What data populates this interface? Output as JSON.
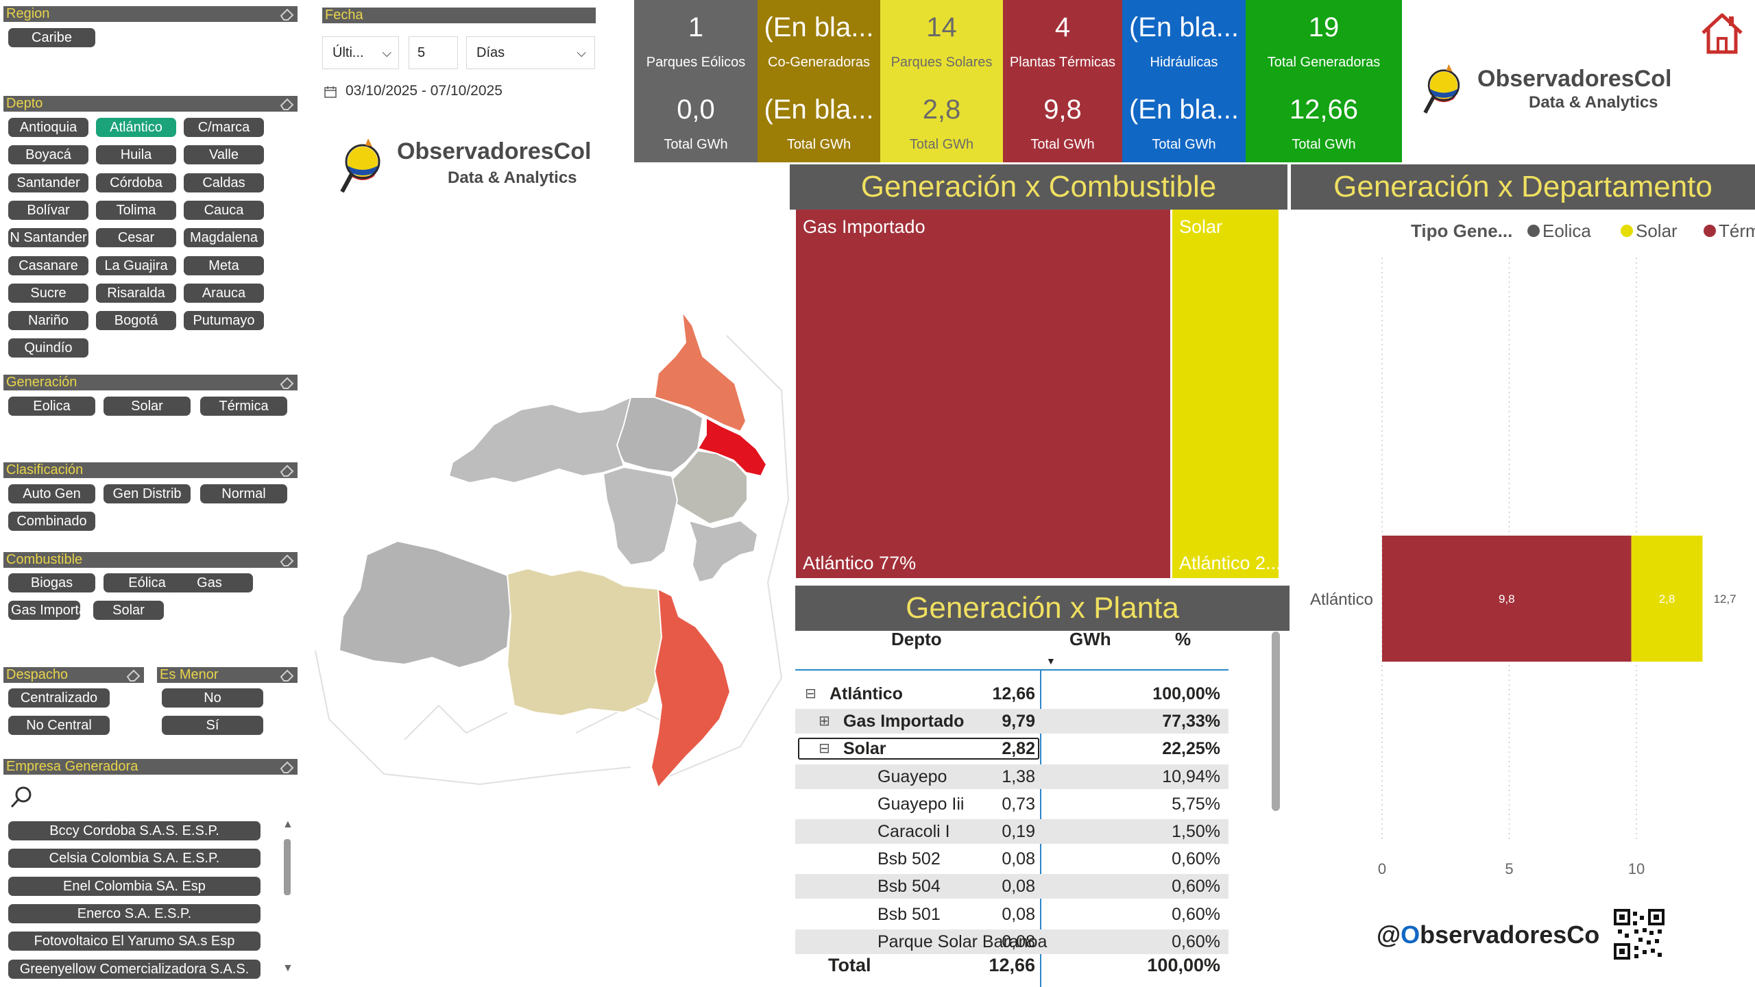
{
  "slicers": {
    "region": {
      "title": "Region",
      "items": [
        "Caribe"
      ]
    },
    "fecha": {
      "title": "Fecha",
      "mode": "Últi...",
      "count": "5",
      "unit": "Días",
      "range": "03/10/2025 - 07/10/2025"
    },
    "depto": {
      "title": "Depto",
      "items": [
        "Antioquia",
        "Atlántico",
        "C/marca",
        "Boyacá",
        "Huila",
        "Valle",
        "Santander",
        "Córdoba",
        "Caldas",
        "Bolívar",
        "Tolima",
        "Cauca",
        "N Santander",
        "Cesar",
        "Magdalena",
        "Casanare",
        "La Guajira",
        "Meta",
        "Sucre",
        "Risaralda",
        "Arauca",
        "Nariño",
        "Bogotá",
        "Putumayo",
        "Quindío"
      ],
      "selected": "Atlántico"
    },
    "generacion": {
      "title": "Generación",
      "items": [
        "Eolica",
        "Solar",
        "Térmica"
      ]
    },
    "clasificacion": {
      "title": "Clasificación",
      "items": [
        "Auto Gen",
        "Gen Distrib",
        "Normal",
        "Combinado"
      ]
    },
    "combustible": {
      "title": "Combustible",
      "items": [
        "Biogas",
        "Eólica",
        "Gas",
        "Gas Importado",
        "Solar"
      ]
    },
    "despacho": {
      "title": "Despacho",
      "items": [
        "Centralizado",
        "No Central"
      ]
    },
    "es_menor": {
      "title": "Es Menor",
      "items": [
        "No",
        "Sí"
      ]
    },
    "empresa": {
      "title": "Empresa Generadora",
      "items": [
        "Bccy Cordoba S.A.S. E.S.P.",
        "Celsia Colombia S.A. E.S.P.",
        "Enel Colombia SA. Esp",
        "Enerco S.A. E.S.P.",
        "Fotovoltaico El Yarumo SA.s Esp",
        "Greenyellow Comercializadora S.A.S."
      ]
    }
  },
  "kpis": [
    {
      "value": "1",
      "label": "Parques Eólicos",
      "sub_value": "0,0",
      "sub_label": "Total GWh",
      "color": "#666666"
    },
    {
      "value": "(En bla...",
      "label": "Co-Generadoras",
      "sub_value": "(En bla...",
      "sub_label": "Total GWh",
      "color": "#9c7d06"
    },
    {
      "value": "14",
      "label": "Parques Solares",
      "sub_value": "2,8",
      "sub_label": "Total GWh",
      "color": "#e8e030"
    },
    {
      "value": "4",
      "label": "Plantas Térmicas",
      "sub_value": "9,8",
      "sub_label": "Total GWh",
      "color": "#a33039"
    },
    {
      "value": "(En bla...",
      "label": "Hidráulicas",
      "sub_value": "(En bla...",
      "sub_label": "Total GWh",
      "color": "#1167c4"
    },
    {
      "value": "19",
      "label": "Total Generadoras",
      "sub_value": "12,66",
      "sub_label": "Total GWh",
      "color": "#13a313"
    }
  ],
  "logo": {
    "line1": "ObservadoresCol",
    "line2": "Data & Analytics"
  },
  "titles": {
    "combustible": "Generación x Combustible",
    "departamento": "Generación x Departamento",
    "planta": "Generación x Planta"
  },
  "treemap": {
    "cells": [
      {
        "name": "Gas Importado",
        "label": "Atlántico 77%",
        "share": 0.7733,
        "color": "#a33039"
      },
      {
        "name": "Solar",
        "label": "Atlántico 2...",
        "share": 0.2225,
        "color": "#e6dd00"
      }
    ]
  },
  "table": {
    "headers": {
      "depto": "Depto",
      "gwh": "GWh",
      "pct": "%"
    },
    "rows": [
      {
        "name": "Atlántico",
        "gwh": "12,66",
        "pct": "100,00%",
        "level": 0,
        "toggle": "⊟"
      },
      {
        "name": "Gas Importado",
        "gwh": "9,79",
        "pct": "77,33%",
        "level": 1,
        "toggle": "⊞"
      },
      {
        "name": "Solar",
        "gwh": "2,82",
        "pct": "22,25%",
        "level": 1,
        "toggle": "⊟"
      },
      {
        "name": "Guayepo",
        "gwh": "1,38",
        "pct": "10,94%",
        "level": 2
      },
      {
        "name": "Guayepo Iii",
        "gwh": "0,73",
        "pct": "5,75%",
        "level": 2
      },
      {
        "name": "Caracoli I",
        "gwh": "0,19",
        "pct": "1,50%",
        "level": 2
      },
      {
        "name": "Bsb 502",
        "gwh": "0,08",
        "pct": "0,60%",
        "level": 2
      },
      {
        "name": "Bsb 504",
        "gwh": "0,08",
        "pct": "0,60%",
        "level": 2
      },
      {
        "name": "Bsb 501",
        "gwh": "0,08",
        "pct": "0,60%",
        "level": 2
      },
      {
        "name": "Parque Solar Baranoa",
        "gwh": "0,08",
        "pct": "0,60%",
        "level": 2
      }
    ],
    "total": {
      "label": "Total",
      "gwh": "12,66",
      "pct": "100,00%"
    }
  },
  "chart_data": {
    "type": "bar",
    "orientation": "horizontal",
    "stacked": true,
    "legend_title": "Tipo Gene...",
    "legend_position": "top-right",
    "categories": [
      "Atlántico"
    ],
    "series": [
      {
        "name": "Eolica",
        "values": [
          0
        ],
        "color": "#595959"
      },
      {
        "name": "Térmica",
        "values": [
          9.8
        ],
        "color": "#a33039"
      },
      {
        "name": "Solar",
        "values": [
          2.8
        ],
        "color": "#e6dd00"
      }
    ],
    "legend_order": [
      "Eolica",
      "Solar",
      "Térmica"
    ],
    "data_labels": [
      "9,8",
      "2,8"
    ],
    "total_label": "12,7",
    "xticks": [
      "0",
      "5",
      "10"
    ],
    "xlim": [
      0,
      14.5
    ],
    "grid": true
  },
  "footer": {
    "handle_prefix": "@",
    "handle_accent": "O",
    "handle_rest": "bservadoresCo"
  }
}
